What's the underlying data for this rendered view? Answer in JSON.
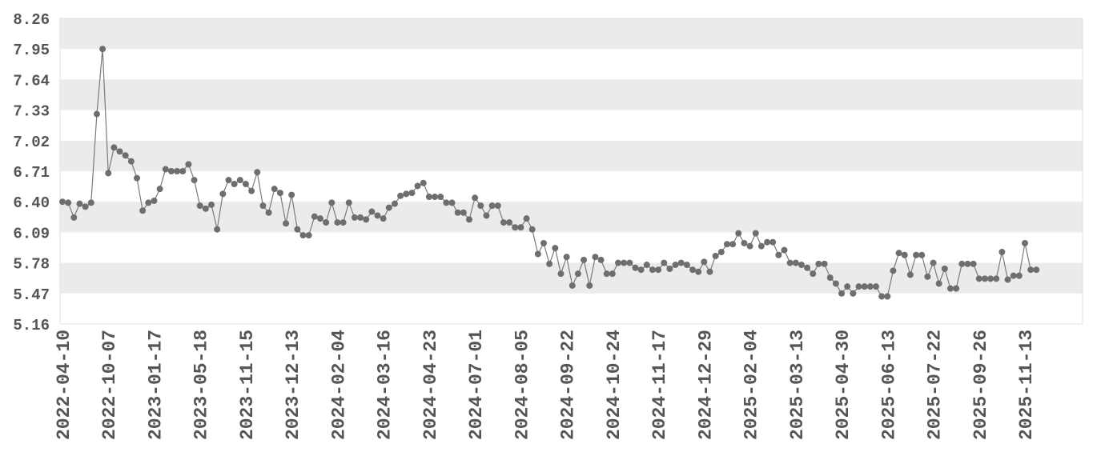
{
  "chart_data": {
    "type": "line",
    "title": "",
    "xlabel": "",
    "ylabel": "",
    "ylim": [
      5.16,
      8.26
    ],
    "yticks": [
      "5.16",
      "5.47",
      "5.78",
      "6.09",
      "6.40",
      "6.71",
      "7.02",
      "7.33",
      "7.64",
      "7.95",
      "8.26"
    ],
    "xticks": [
      "2022-04-10",
      "2022-10-07",
      "2023-01-17",
      "2023-05-18",
      "2023-11-15",
      "2023-12-13",
      "2024-02-04",
      "2024-03-16",
      "2024-04-23",
      "2024-07-01",
      "2024-08-05",
      "2024-09-22",
      "2024-10-24",
      "2024-11-17",
      "2024-12-29",
      "2025-02-04",
      "2025-03-13",
      "2025-04-30",
      "2025-06-13",
      "2025-07-22",
      "2025-09-26",
      "2025-11-13"
    ],
    "xtick_index": [
      0,
      8,
      16,
      24,
      32,
      40,
      48,
      56,
      64,
      72,
      80,
      88,
      96,
      104,
      112,
      120,
      128,
      136,
      144,
      152,
      160,
      168
    ],
    "grid": "horizontal alternating bands",
    "colors": {
      "line": "#7a7a7a",
      "marker": "#6e6e6e",
      "band": "#ebebeb",
      "tick_text": "#555555",
      "frame": "#e0e0e0"
    },
    "series": [
      {
        "values": [
          6.4,
          6.39,
          6.24,
          6.38,
          6.35,
          6.39,
          7.29,
          7.95,
          6.69,
          6.95,
          6.91,
          6.87,
          6.81,
          6.64,
          6.31,
          6.39,
          6.41,
          6.53,
          6.73,
          6.71,
          6.71,
          6.71,
          6.78,
          6.62,
          6.36,
          6.33,
          6.37,
          6.12,
          6.48,
          6.62,
          6.58,
          6.62,
          6.58,
          6.51,
          6.7,
          6.36,
          6.29,
          6.53,
          6.49,
          6.18,
          6.47,
          6.12,
          6.06,
          6.06,
          6.25,
          6.23,
          6.19,
          6.39,
          6.19,
          6.19,
          6.39,
          6.24,
          6.24,
          6.22,
          6.3,
          6.26,
          6.23,
          6.34,
          6.38,
          6.46,
          6.48,
          6.49,
          6.56,
          6.59,
          6.45,
          6.45,
          6.45,
          6.39,
          6.39,
          6.29,
          6.29,
          6.22,
          6.44,
          6.36,
          6.26,
          6.36,
          6.36,
          6.19,
          6.19,
          6.14,
          6.14,
          6.23,
          6.12,
          5.87,
          5.98,
          5.77,
          5.93,
          5.67,
          5.84,
          5.55,
          5.67,
          5.81,
          5.55,
          5.84,
          5.81,
          5.67,
          5.67,
          5.78,
          5.78,
          5.78,
          5.73,
          5.71,
          5.76,
          5.71,
          5.71,
          5.78,
          5.72,
          5.76,
          5.78,
          5.76,
          5.71,
          5.69,
          5.79,
          5.69,
          5.85,
          5.89,
          5.97,
          5.97,
          6.08,
          5.98,
          5.95,
          6.08,
          5.95,
          5.99,
          5.99,
          5.86,
          5.91,
          5.78,
          5.78,
          5.76,
          5.73,
          5.67,
          5.77,
          5.77,
          5.63,
          5.57,
          5.47,
          5.54,
          5.47,
          5.54,
          5.54,
          5.54,
          5.54,
          5.44,
          5.44,
          5.7,
          5.88,
          5.86,
          5.66,
          5.86,
          5.86,
          5.64,
          5.78,
          5.57,
          5.72,
          5.52,
          5.52,
          5.77,
          5.77,
          5.77,
          5.62,
          5.62,
          5.62,
          5.62,
          5.89,
          5.61,
          5.65,
          5.65,
          5.98,
          5.71,
          5.71
        ]
      }
    ]
  }
}
